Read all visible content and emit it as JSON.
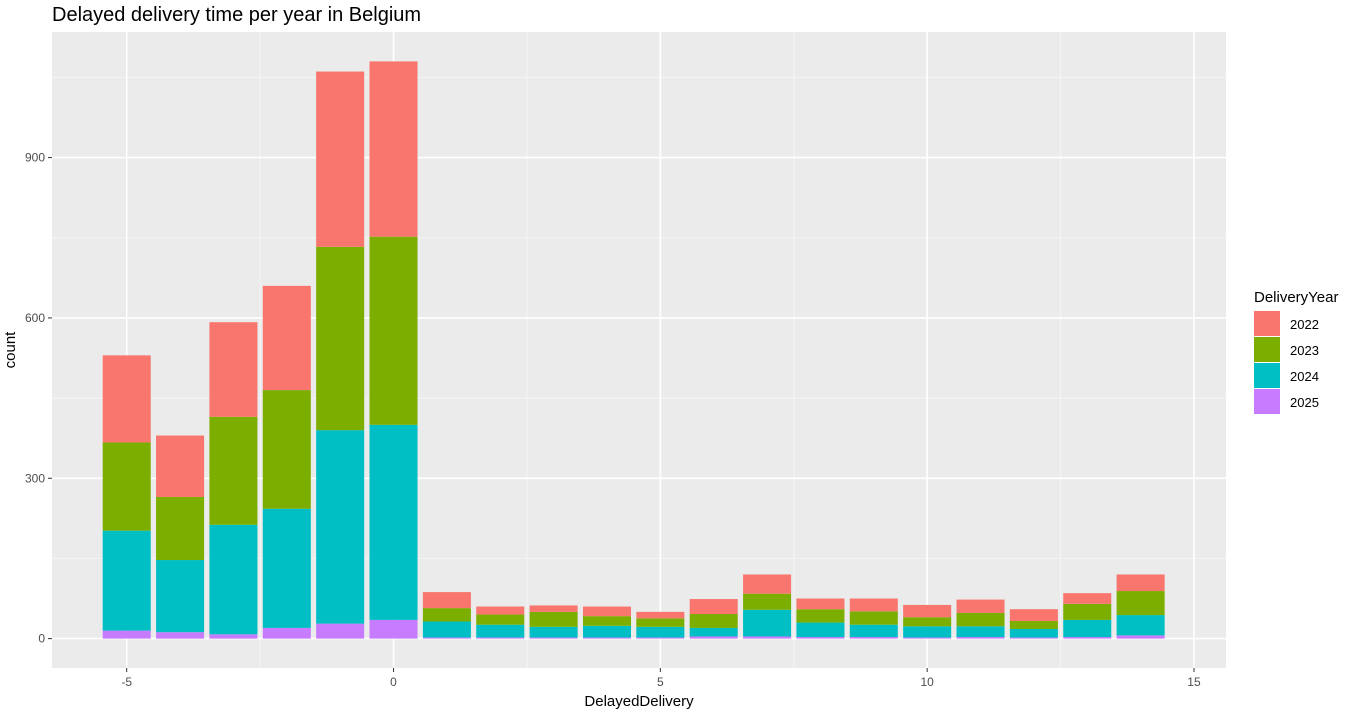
{
  "chart_data": {
    "type": "bar",
    "stacked": true,
    "title": "Delayed delivery time per year in Belgium",
    "xlabel": "DelayedDelivery",
    "ylabel": "count",
    "xlim": [
      -6.4,
      15.6
    ],
    "ylim": [
      -55,
      1135
    ],
    "x_ticks": [
      -5,
      0,
      5,
      10,
      15
    ],
    "x_tick_labels": [
      "-5",
      "0",
      "5",
      "10",
      "15"
    ],
    "y_ticks": [
      0,
      300,
      600,
      900
    ],
    "y_tick_labels": [
      "0",
      "300",
      "600",
      "900"
    ],
    "grid": true,
    "legend_title": "DeliveryYear",
    "legend_position": "right",
    "x": [
      -5,
      -4,
      -3,
      -2,
      -1,
      0,
      1,
      2,
      3,
      4,
      5,
      6,
      7,
      8,
      9,
      10,
      11,
      12,
      13,
      14
    ],
    "series": [
      {
        "name": "2025",
        "color": "#C77CFF",
        "values": [
          15,
          12,
          8,
          20,
          28,
          35,
          2,
          2,
          2,
          2,
          2,
          4,
          4,
          3,
          3,
          2,
          3,
          2,
          3,
          6
        ]
      },
      {
        "name": "2024",
        "color": "#00BFC4",
        "values": [
          187,
          135,
          205,
          223,
          362,
          365,
          30,
          24,
          20,
          22,
          20,
          16,
          50,
          27,
          23,
          21,
          20,
          16,
          32,
          38
        ]
      },
      {
        "name": "2023",
        "color": "#7CAE00",
        "values": [
          165,
          118,
          202,
          222,
          343,
          352,
          25,
          19,
          28,
          18,
          16,
          26,
          30,
          25,
          25,
          17,
          25,
          15,
          30,
          45
        ]
      },
      {
        "name": "2022",
        "color": "#F8766D",
        "values": [
          163,
          115,
          177,
          195,
          328,
          328,
          30,
          15,
          12,
          18,
          12,
          28,
          36,
          20,
          24,
          23,
          25,
          22,
          20,
          31
        ]
      }
    ]
  }
}
